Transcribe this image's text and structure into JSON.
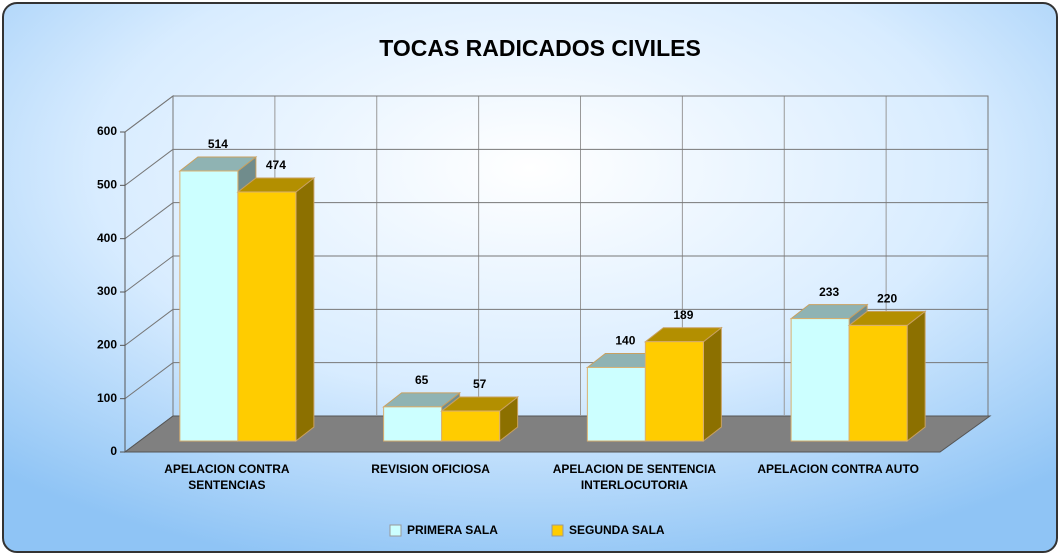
{
  "chart_data": {
    "type": "bar3d",
    "title": "TOCAS RADICADOS CIVILES",
    "categories": [
      "APELACION CONTRA\nSENTENCIAS",
      "REVISION OFICIOSA",
      "APELACION DE SENTENCIA\nINTERLOCUTORIA",
      "APELACION CONTRA AUTO"
    ],
    "series": [
      {
        "name": "PRIMERA SALA",
        "color": "#ccffff",
        "values": [
          514,
          65,
          140,
          233
        ]
      },
      {
        "name": "SEGUNDA SALA",
        "color": "#ffcc00",
        "values": [
          474,
          57,
          189,
          220
        ]
      }
    ],
    "ylim": [
      0,
      600
    ],
    "yticks": [
      0,
      100,
      200,
      300,
      400,
      500,
      600
    ],
    "grid": true,
    "legend": "bottom"
  }
}
